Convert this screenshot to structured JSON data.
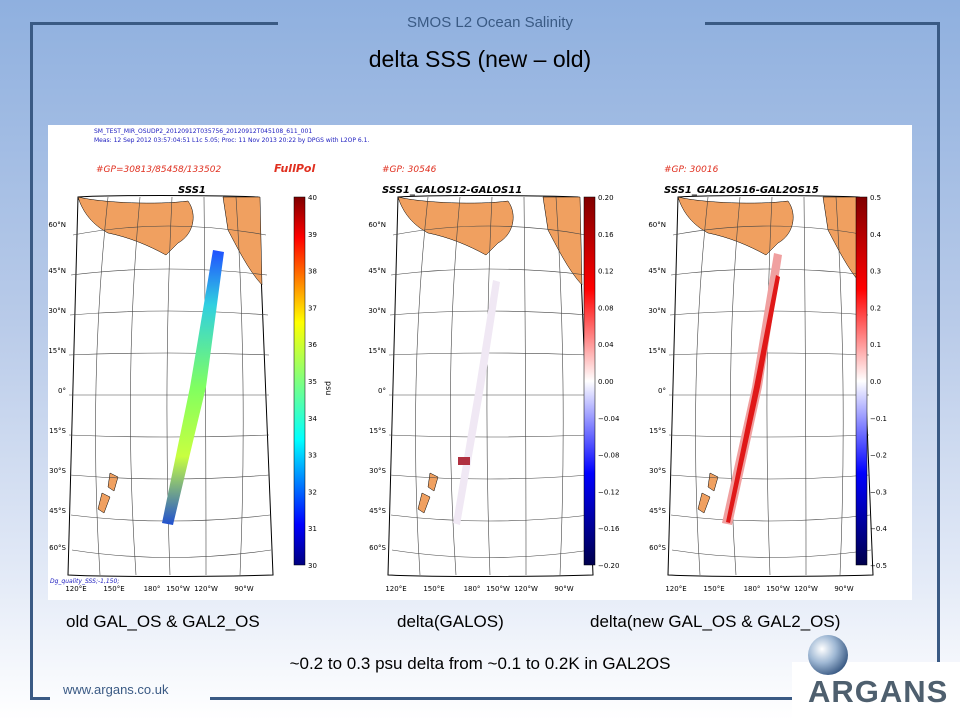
{
  "header": {
    "subtitle": "SMOS L2 Ocean Salinity",
    "title": "delta SSS (new – old)"
  },
  "figure": {
    "file_title": "SM_TEST_MIR_OSUDP2_20120912T035756_20120912T045108_611_001",
    "meas_line": "Meas: 12 Sep 2012 03:57:04:51 L1c 5.05; Proc: 11 Nov 2013 20:22 by DPGS with L2OP 6.1.",
    "footnote": "Dg_quality_SSS;-1,150;",
    "mode_label": "FullPol",
    "panels": [
      {
        "gp": "#GP=30813/85458/133502",
        "title": "SSS1",
        "cbar_label": "psu",
        "ticks": [
          "40",
          "39",
          "38",
          "37",
          "36",
          "35",
          "34",
          "33",
          "32",
          "31",
          "30"
        ]
      },
      {
        "gp": "#GP: 30546",
        "title": "SSS1_GALOS12-GALOS11",
        "ticks": [
          "0.20",
          "0.16",
          "0.12",
          "0.08",
          "0.04",
          "0.00",
          "−0.04",
          "−0.08",
          "−0.12",
          "−0.16",
          "−0.20"
        ]
      },
      {
        "gp": "#GP: 30016",
        "title": "SSS1_GAL2OS16-GAL2OS15",
        "ticks": [
          "0.5",
          "0.4",
          "0.3",
          "0.2",
          "0.1",
          "0.0",
          "−0.1",
          "−0.2",
          "−0.3",
          "−0.4",
          "−0.5"
        ]
      }
    ],
    "lat_labels": [
      "60°N",
      "45°N",
      "30°N",
      "15°N",
      "0°",
      "15°S",
      "30°S",
      "45°S",
      "60°S"
    ],
    "lon_labels": [
      "120°E",
      "150°E",
      "180°",
      "150°W",
      "120°W",
      "90°W"
    ]
  },
  "captions": {
    "left": "old GAL_OS & GAL2_OS",
    "middle": "delta(GALOS)",
    "right": "delta(new GAL_OS & GAL2_OS)"
  },
  "note": "~0.2 to 0.3 psu delta from ~0.1 to 0.2K in GAL2OS",
  "footer": {
    "url": "www.argans.co.uk",
    "logo": "ARGANS"
  },
  "colors": {
    "frame": "#3a5a84",
    "land": "#f0a060",
    "title_blue": "#3a5a84"
  }
}
